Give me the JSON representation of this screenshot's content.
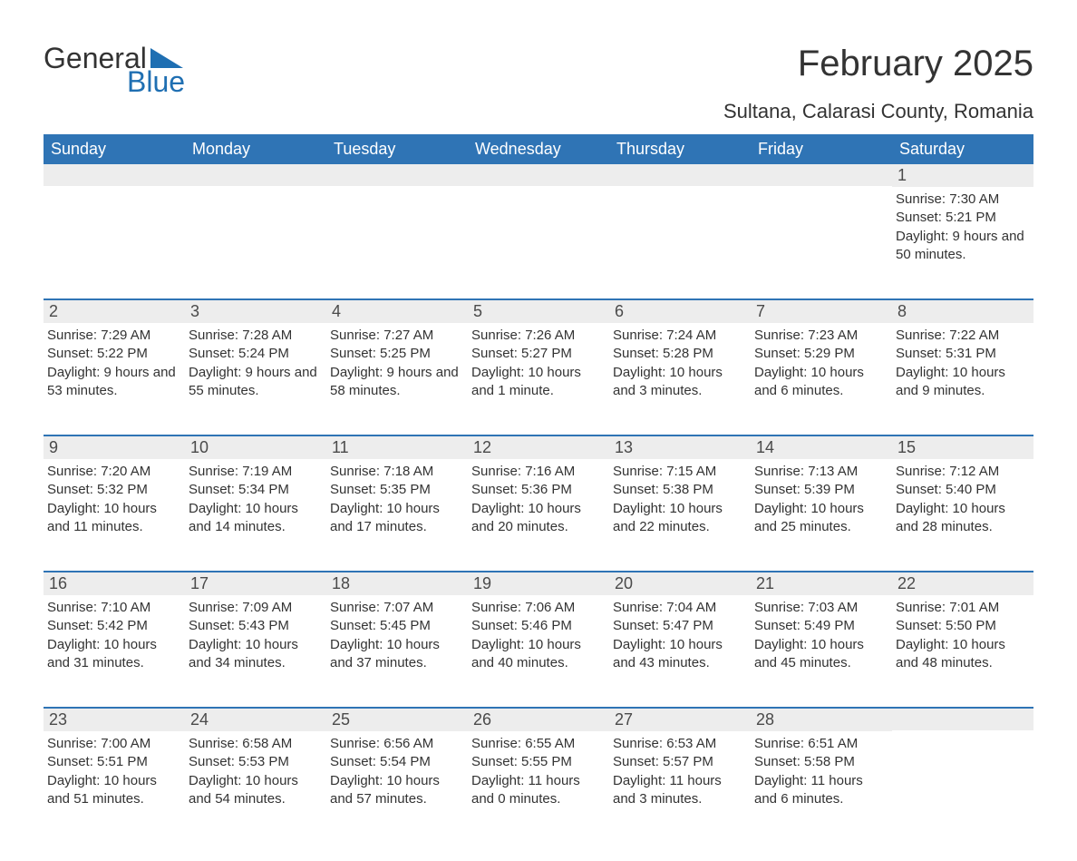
{
  "logo": {
    "word1": "General",
    "word2": "Blue",
    "tri_color": "#1f6fb2"
  },
  "title": "February 2025",
  "subtitle": "Sultana, Calarasi County, Romania",
  "colors": {
    "header_bg": "#2f74b5",
    "header_text": "#ffffff",
    "daynum_bg": "#ededed",
    "week_border": "#2f74b5",
    "body_text": "#333333"
  },
  "day_headers": [
    "Sunday",
    "Monday",
    "Tuesday",
    "Wednesday",
    "Thursday",
    "Friday",
    "Saturday"
  ],
  "weeks": [
    [
      {
        "n": "",
        "sr": "",
        "ss": "",
        "dl": ""
      },
      {
        "n": "",
        "sr": "",
        "ss": "",
        "dl": ""
      },
      {
        "n": "",
        "sr": "",
        "ss": "",
        "dl": ""
      },
      {
        "n": "",
        "sr": "",
        "ss": "",
        "dl": ""
      },
      {
        "n": "",
        "sr": "",
        "ss": "",
        "dl": ""
      },
      {
        "n": "",
        "sr": "",
        "ss": "",
        "dl": ""
      },
      {
        "n": "1",
        "sr": "Sunrise: 7:30 AM",
        "ss": "Sunset: 5:21 PM",
        "dl": "Daylight: 9 hours and 50 minutes."
      }
    ],
    [
      {
        "n": "2",
        "sr": "Sunrise: 7:29 AM",
        "ss": "Sunset: 5:22 PM",
        "dl": "Daylight: 9 hours and 53 minutes."
      },
      {
        "n": "3",
        "sr": "Sunrise: 7:28 AM",
        "ss": "Sunset: 5:24 PM",
        "dl": "Daylight: 9 hours and 55 minutes."
      },
      {
        "n": "4",
        "sr": "Sunrise: 7:27 AM",
        "ss": "Sunset: 5:25 PM",
        "dl": "Daylight: 9 hours and 58 minutes."
      },
      {
        "n": "5",
        "sr": "Sunrise: 7:26 AM",
        "ss": "Sunset: 5:27 PM",
        "dl": "Daylight: 10 hours and 1 minute."
      },
      {
        "n": "6",
        "sr": "Sunrise: 7:24 AM",
        "ss": "Sunset: 5:28 PM",
        "dl": "Daylight: 10 hours and 3 minutes."
      },
      {
        "n": "7",
        "sr": "Sunrise: 7:23 AM",
        "ss": "Sunset: 5:29 PM",
        "dl": "Daylight: 10 hours and 6 minutes."
      },
      {
        "n": "8",
        "sr": "Sunrise: 7:22 AM",
        "ss": "Sunset: 5:31 PM",
        "dl": "Daylight: 10 hours and 9 minutes."
      }
    ],
    [
      {
        "n": "9",
        "sr": "Sunrise: 7:20 AM",
        "ss": "Sunset: 5:32 PM",
        "dl": "Daylight: 10 hours and 11 minutes."
      },
      {
        "n": "10",
        "sr": "Sunrise: 7:19 AM",
        "ss": "Sunset: 5:34 PM",
        "dl": "Daylight: 10 hours and 14 minutes."
      },
      {
        "n": "11",
        "sr": "Sunrise: 7:18 AM",
        "ss": "Sunset: 5:35 PM",
        "dl": "Daylight: 10 hours and 17 minutes."
      },
      {
        "n": "12",
        "sr": "Sunrise: 7:16 AM",
        "ss": "Sunset: 5:36 PM",
        "dl": "Daylight: 10 hours and 20 minutes."
      },
      {
        "n": "13",
        "sr": "Sunrise: 7:15 AM",
        "ss": "Sunset: 5:38 PM",
        "dl": "Daylight: 10 hours and 22 minutes."
      },
      {
        "n": "14",
        "sr": "Sunrise: 7:13 AM",
        "ss": "Sunset: 5:39 PM",
        "dl": "Daylight: 10 hours and 25 minutes."
      },
      {
        "n": "15",
        "sr": "Sunrise: 7:12 AM",
        "ss": "Sunset: 5:40 PM",
        "dl": "Daylight: 10 hours and 28 minutes."
      }
    ],
    [
      {
        "n": "16",
        "sr": "Sunrise: 7:10 AM",
        "ss": "Sunset: 5:42 PM",
        "dl": "Daylight: 10 hours and 31 minutes."
      },
      {
        "n": "17",
        "sr": "Sunrise: 7:09 AM",
        "ss": "Sunset: 5:43 PM",
        "dl": "Daylight: 10 hours and 34 minutes."
      },
      {
        "n": "18",
        "sr": "Sunrise: 7:07 AM",
        "ss": "Sunset: 5:45 PM",
        "dl": "Daylight: 10 hours and 37 minutes."
      },
      {
        "n": "19",
        "sr": "Sunrise: 7:06 AM",
        "ss": "Sunset: 5:46 PM",
        "dl": "Daylight: 10 hours and 40 minutes."
      },
      {
        "n": "20",
        "sr": "Sunrise: 7:04 AM",
        "ss": "Sunset: 5:47 PM",
        "dl": "Daylight: 10 hours and 43 minutes."
      },
      {
        "n": "21",
        "sr": "Sunrise: 7:03 AM",
        "ss": "Sunset: 5:49 PM",
        "dl": "Daylight: 10 hours and 45 minutes."
      },
      {
        "n": "22",
        "sr": "Sunrise: 7:01 AM",
        "ss": "Sunset: 5:50 PM",
        "dl": "Daylight: 10 hours and 48 minutes."
      }
    ],
    [
      {
        "n": "23",
        "sr": "Sunrise: 7:00 AM",
        "ss": "Sunset: 5:51 PM",
        "dl": "Daylight: 10 hours and 51 minutes."
      },
      {
        "n": "24",
        "sr": "Sunrise: 6:58 AM",
        "ss": "Sunset: 5:53 PM",
        "dl": "Daylight: 10 hours and 54 minutes."
      },
      {
        "n": "25",
        "sr": "Sunrise: 6:56 AM",
        "ss": "Sunset: 5:54 PM",
        "dl": "Daylight: 10 hours and 57 minutes."
      },
      {
        "n": "26",
        "sr": "Sunrise: 6:55 AM",
        "ss": "Sunset: 5:55 PM",
        "dl": "Daylight: 11 hours and 0 minutes."
      },
      {
        "n": "27",
        "sr": "Sunrise: 6:53 AM",
        "ss": "Sunset: 5:57 PM",
        "dl": "Daylight: 11 hours and 3 minutes."
      },
      {
        "n": "28",
        "sr": "Sunrise: 6:51 AM",
        "ss": "Sunset: 5:58 PM",
        "dl": "Daylight: 11 hours and 6 minutes."
      },
      {
        "n": "",
        "sr": "",
        "ss": "",
        "dl": ""
      }
    ]
  ]
}
